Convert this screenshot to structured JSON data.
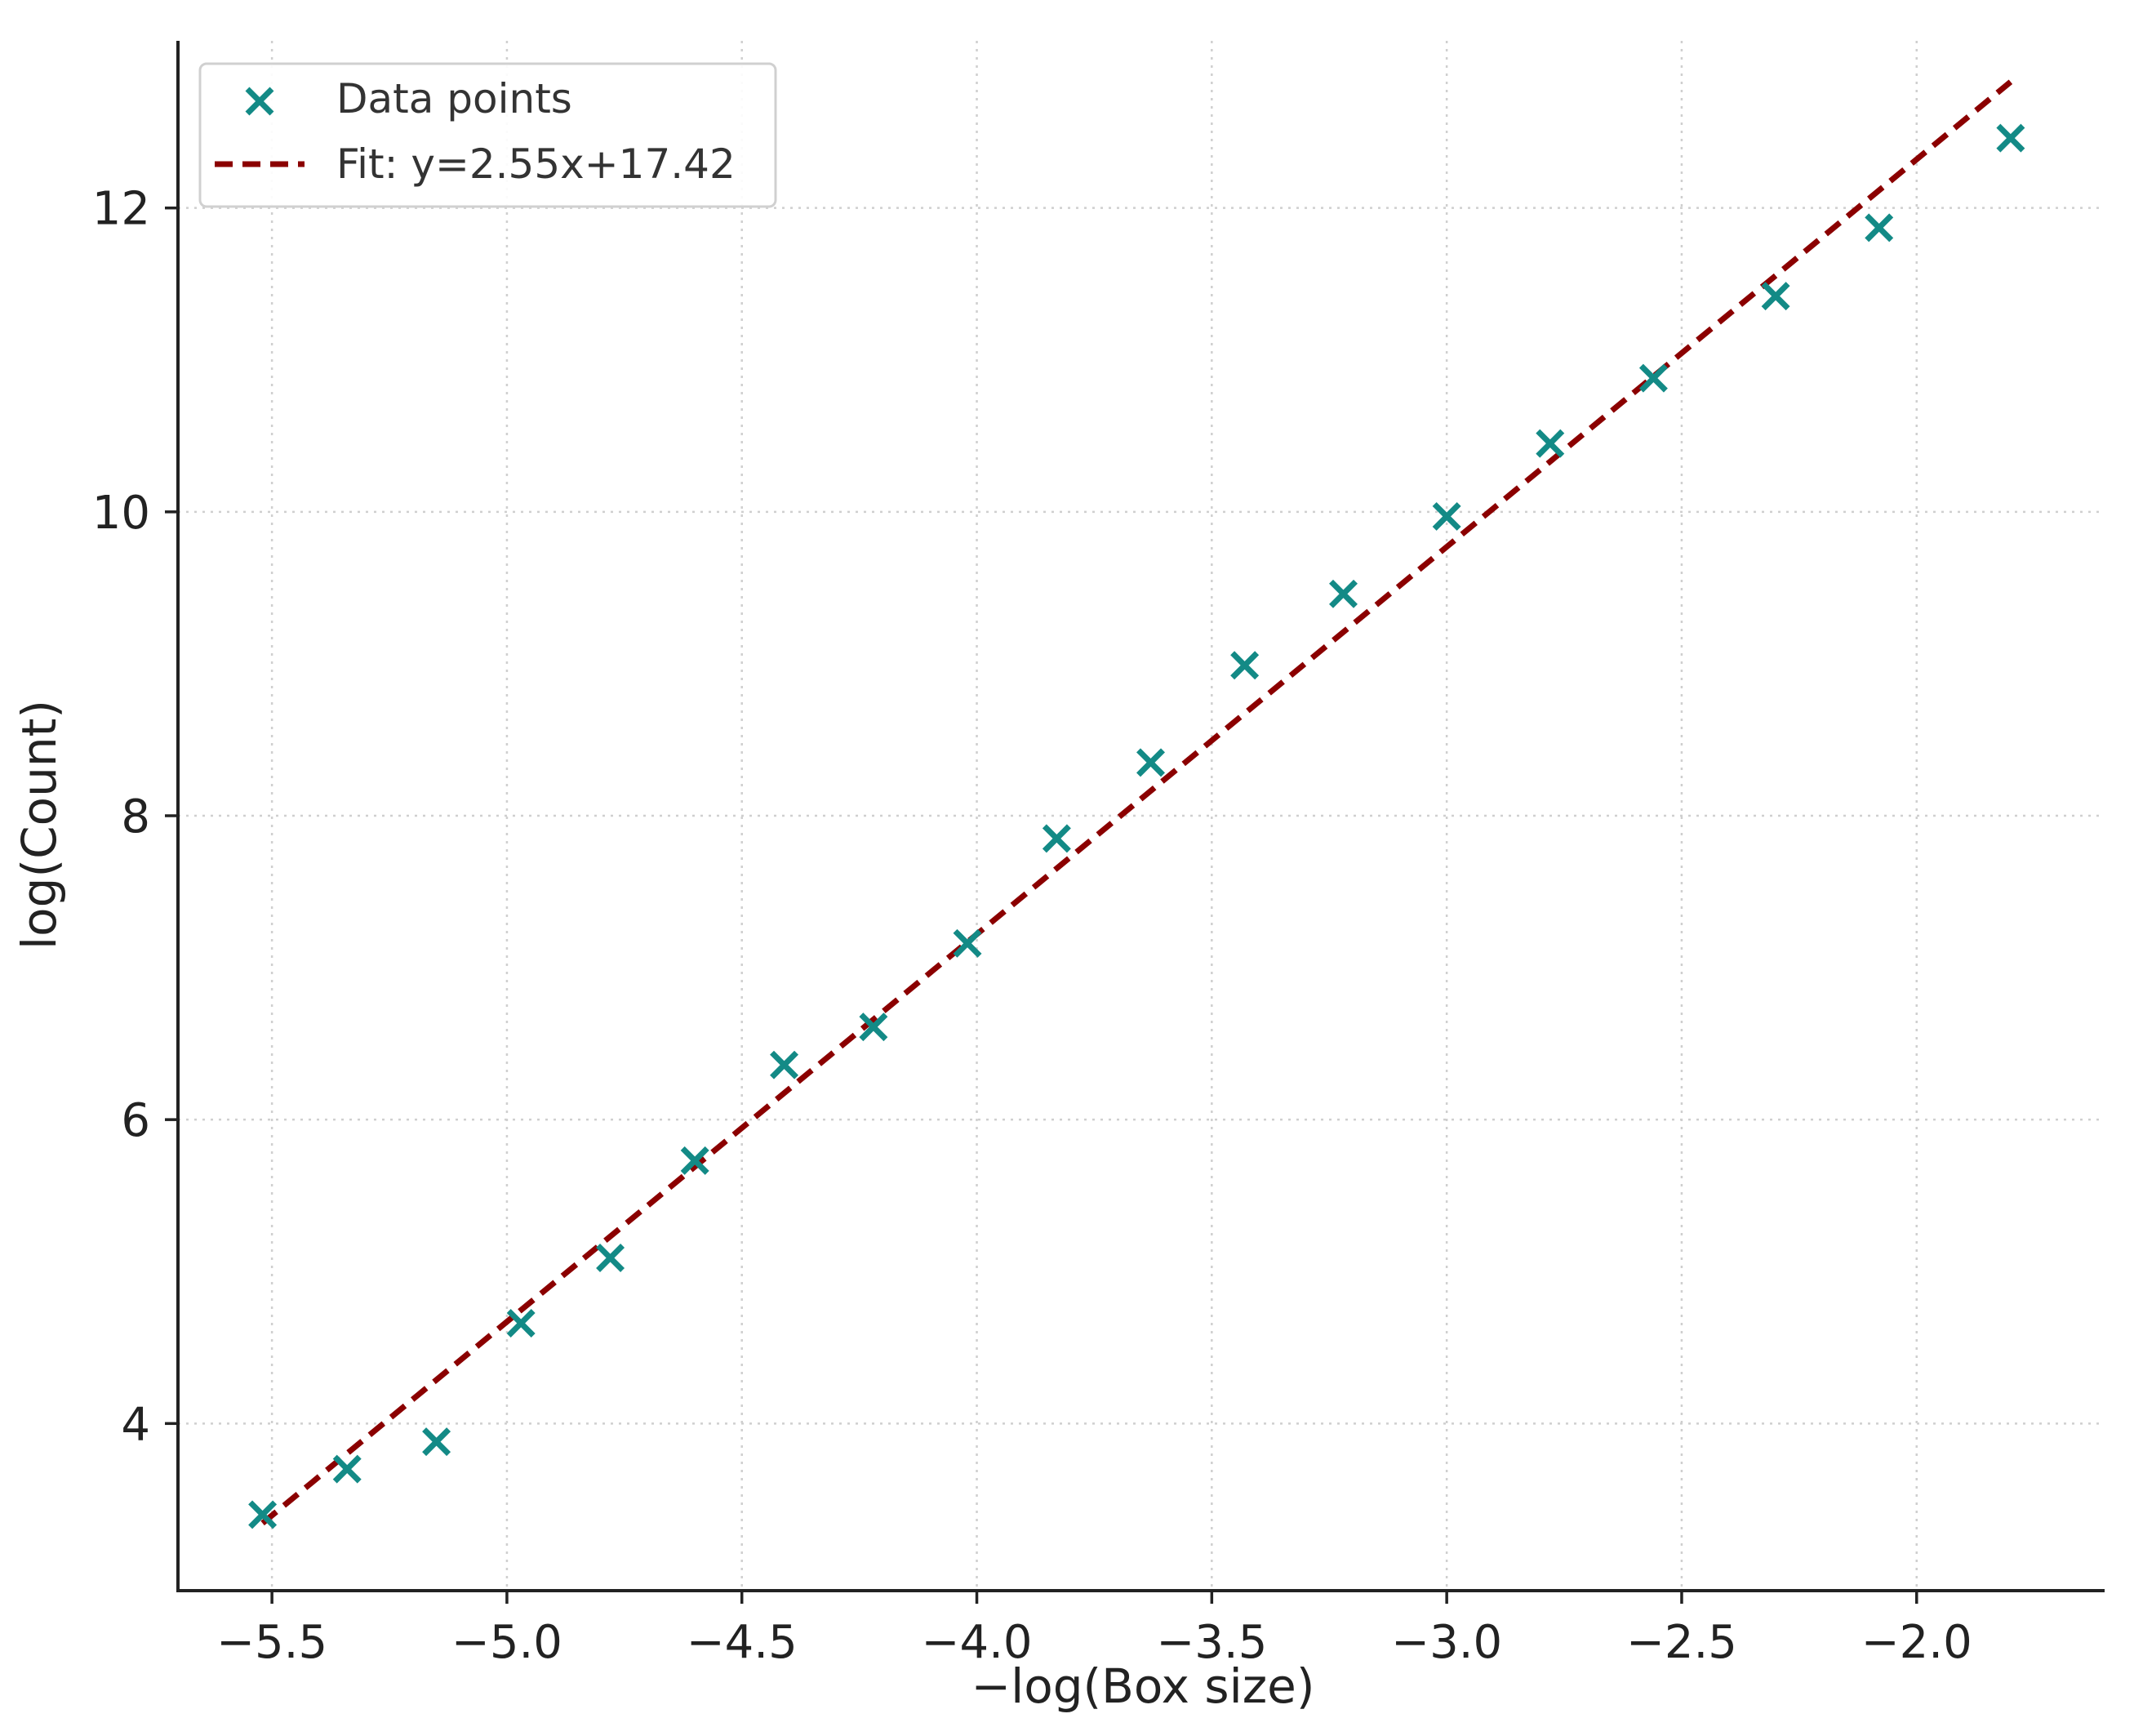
{
  "chart_data": {
    "type": "scatter",
    "xlabel": "−log(Box size)",
    "ylabel": "log(Count)",
    "xlim": [
      -5.7,
      -1.6
    ],
    "ylim": [
      2.9,
      13.1
    ],
    "grid": true,
    "legend_position": "upper-left",
    "x_ticks": [
      -5.5,
      -5.0,
      -4.5,
      -4.0,
      -3.5,
      -3.0,
      -2.5,
      -2.0
    ],
    "x_tick_labels": [
      "−5.5",
      "−5.0",
      "−4.5",
      "−4.0",
      "−3.5",
      "−3.0",
      "−2.5",
      "−2.0"
    ],
    "y_ticks": [
      4,
      6,
      8,
      10,
      12
    ],
    "y_tick_labels": [
      "4",
      "6",
      "8",
      "10",
      "12"
    ],
    "series": [
      {
        "name": "Data points",
        "marker": "x",
        "color": "#138a86",
        "x": [
          -5.52,
          -5.34,
          -5.15,
          -4.97,
          -4.78,
          -4.6,
          -4.41,
          -4.22,
          -4.02,
          -3.83,
          -3.63,
          -3.43,
          -3.22,
          -3.0,
          -2.78,
          -2.56,
          -2.3,
          -2.08,
          -1.8
        ],
        "y": [
          3.4,
          3.7,
          3.88,
          4.66,
          5.09,
          5.73,
          6.36,
          6.61,
          7.16,
          7.85,
          8.35,
          8.99,
          9.46,
          9.97,
          10.45,
          10.88,
          11.42,
          11.87,
          12.46
        ]
      },
      {
        "name": "Fit: y=2.55x+17.42",
        "type": "line",
        "style": "dashed",
        "color": "#8b0000",
        "slope": 2.55,
        "intercept": 17.42,
        "x": [
          -5.52,
          -1.8
        ]
      }
    ]
  }
}
